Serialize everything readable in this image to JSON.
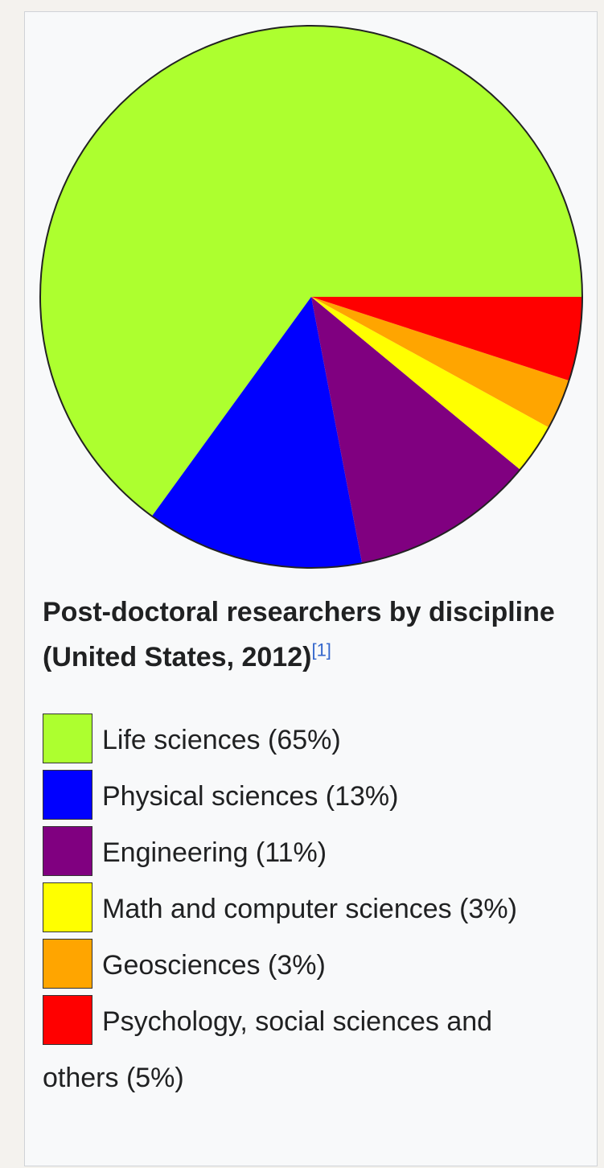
{
  "chart_data": {
    "type": "pie",
    "title": "Post-doctoral researchers by discipline (United States, 2012)",
    "title_ref": "[1]",
    "categories": [
      "Life sciences (65%)",
      "Physical sciences (13%)",
      "Engineering (11%)",
      "Math and computer sciences (3%)",
      "Geosciences (3%)",
      "Psychology, social sciences and others (5%)"
    ],
    "values": [
      65,
      13,
      11,
      3,
      3,
      5
    ],
    "colors": [
      "#adff2f",
      "#0000ff",
      "#800080",
      "#ffff00",
      "#ffa500",
      "#ff0000"
    ]
  }
}
